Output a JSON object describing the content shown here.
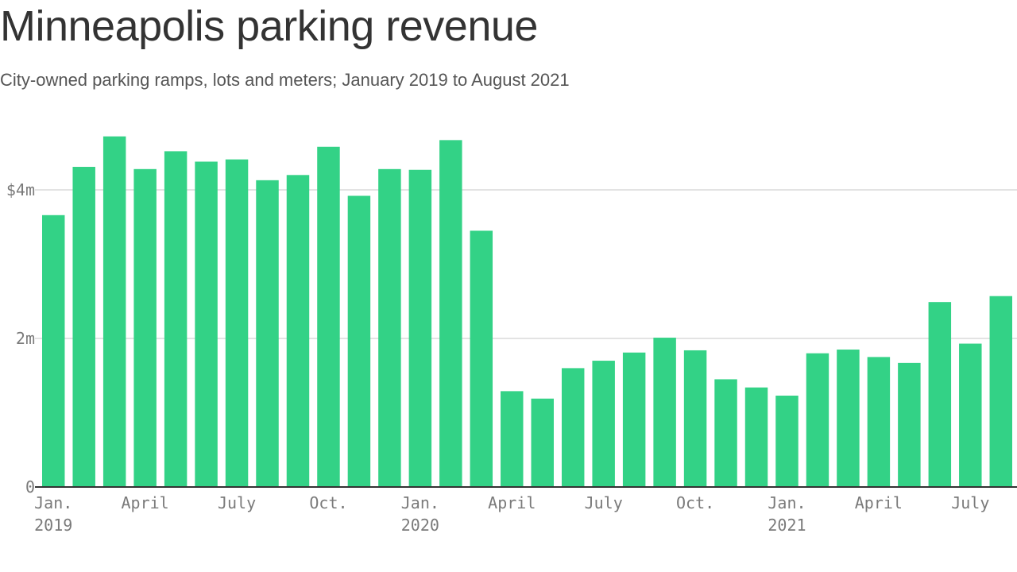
{
  "title": "Minneapolis parking revenue",
  "subtitle": "City-owned parking ramps, lots and meters; January 2019 to August 2021",
  "colors": {
    "bar": "#33d286",
    "grid": "#e3e3e3",
    "axis": "#333333",
    "tick": "#7a7a7a"
  },
  "chart_data": {
    "type": "bar",
    "title": "Minneapolis parking revenue",
    "subtitle": "City-owned parking ramps, lots and meters; January 2019 to August 2021",
    "xlabel": "",
    "ylabel": "",
    "ylim": [
      0,
      5
    ],
    "units": "millions of dollars",
    "grid": true,
    "yticks": [
      {
        "value": 0,
        "label": "0"
      },
      {
        "value": 2,
        "label": "2m"
      },
      {
        "value": 4,
        "label": "$4m"
      }
    ],
    "xticks": [
      {
        "index": 0,
        "lines": [
          "Jan.",
          "2019"
        ]
      },
      {
        "index": 3,
        "lines": [
          "April"
        ]
      },
      {
        "index": 6,
        "lines": [
          "July"
        ]
      },
      {
        "index": 9,
        "lines": [
          "Oct."
        ]
      },
      {
        "index": 12,
        "lines": [
          "Jan.",
          "2020"
        ]
      },
      {
        "index": 15,
        "lines": [
          "April"
        ]
      },
      {
        "index": 18,
        "lines": [
          "July"
        ]
      },
      {
        "index": 21,
        "lines": [
          "Oct."
        ]
      },
      {
        "index": 24,
        "lines": [
          "Jan.",
          "2021"
        ]
      },
      {
        "index": 27,
        "lines": [
          "April"
        ]
      },
      {
        "index": 30,
        "lines": [
          "July"
        ]
      }
    ],
    "categories": [
      "Jan 2019",
      "Feb 2019",
      "Mar 2019",
      "Apr 2019",
      "May 2019",
      "Jun 2019",
      "Jul 2019",
      "Aug 2019",
      "Sep 2019",
      "Oct 2019",
      "Nov 2019",
      "Dec 2019",
      "Jan 2020",
      "Feb 2020",
      "Mar 2020",
      "Apr 2020",
      "May 2020",
      "Jun 2020",
      "Jul 2020",
      "Aug 2020",
      "Sep 2020",
      "Oct 2020",
      "Nov 2020",
      "Dec 2020",
      "Jan 2021",
      "Feb 2021",
      "Mar 2021",
      "Apr 2021",
      "May 2021",
      "Jun 2021",
      "Jul 2021",
      "Aug 2021"
    ],
    "values": [
      3.66,
      4.31,
      4.72,
      4.28,
      4.52,
      4.38,
      4.41,
      4.13,
      4.2,
      4.58,
      3.92,
      4.28,
      4.27,
      4.67,
      3.45,
      1.29,
      1.19,
      1.6,
      1.7,
      1.81,
      2.01,
      1.84,
      1.45,
      1.34,
      1.23,
      1.8,
      1.85,
      1.75,
      1.67,
      2.49,
      1.93,
      2.57
    ]
  }
}
